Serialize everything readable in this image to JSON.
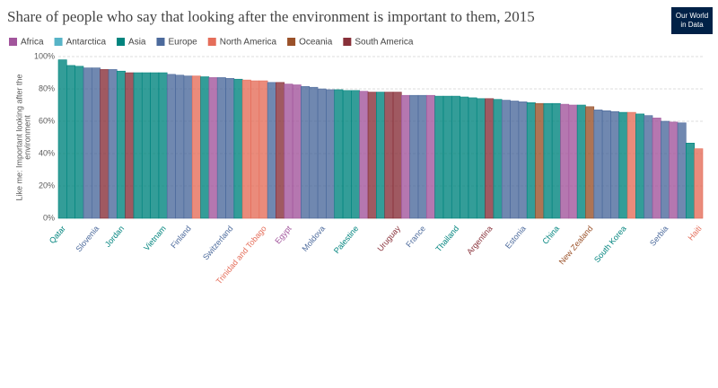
{
  "chart_data": {
    "type": "bar",
    "title": "Share of people who say that looking after the environment is important to them, 2015",
    "logo": [
      "Our World",
      "in Data"
    ],
    "y_label": [
      "Like me: Important looking after the",
      "environment"
    ],
    "legend": [
      {
        "name": "Africa",
        "color": "#a2559c"
      },
      {
        "name": "Antarctica",
        "color": "#57b4c7"
      },
      {
        "name": "Asia",
        "color": "#00847e"
      },
      {
        "name": "Europe",
        "color": "#4c6a9c"
      },
      {
        "name": "North America",
        "color": "#e56e5a"
      },
      {
        "name": "Oceania",
        "color": "#9a5129"
      },
      {
        "name": "South America",
        "color": "#883039"
      }
    ],
    "categories": [
      "Qatar",
      null,
      null,
      null,
      "Slovenia",
      null,
      null,
      "Jordan",
      null,
      null,
      null,
      null,
      "Vietnam",
      null,
      null,
      "Finland",
      null,
      null,
      null,
      null,
      "Switzerland",
      null,
      null,
      null,
      "Trinidad and Tobago",
      null,
      null,
      "Egypt",
      null,
      null,
      null,
      "Moldova",
      null,
      null,
      null,
      "Palestine",
      null,
      null,
      null,
      null,
      "Uruguay",
      null,
      null,
      "France",
      null,
      null,
      null,
      "Thailand",
      null,
      null,
      null,
      "Argentina",
      null,
      null,
      null,
      "Estonia",
      null,
      null,
      null,
      "China",
      null,
      null,
      null,
      "New Zealand",
      null,
      null,
      null,
      "South Korea",
      null,
      null,
      null,
      null,
      "Serbia",
      null,
      null,
      null,
      "Haiti"
    ],
    "values": [
      98,
      94.5,
      94,
      93,
      93,
      92,
      92,
      91,
      90,
      90,
      90,
      90,
      90,
      89,
      88.5,
      88,
      88,
      87.5,
      87,
      87,
      86.5,
      86,
      85.5,
      85,
      85,
      84,
      84,
      83,
      82.5,
      81.5,
      81,
      80,
      79.5,
      79.5,
      79,
      79,
      78.5,
      78,
      78,
      78,
      78,
      76,
      76,
      76,
      76,
      75.5,
      75.5,
      75.5,
      75,
      74.5,
      74,
      74,
      73.5,
      73,
      72.5,
      72,
      71.5,
      71,
      71,
      71,
      70.5,
      70,
      70,
      69,
      67,
      66.5,
      66,
      65.5,
      65.5,
      64.5,
      63.5,
      62,
      60,
      59.5,
      59,
      46.5,
      43
    ],
    "colors": [
      "#00847e",
      "#00847e",
      "#00847e",
      "#4c6a9c",
      "#4c6a9c",
      "#883039",
      "#4c6a9c",
      "#00847e",
      "#883039",
      "#00847e",
      "#00847e",
      "#00847e",
      "#00847e",
      "#4c6a9c",
      "#4c6a9c",
      "#4c6a9c",
      "#e56e5a",
      "#00847e",
      "#a2559c",
      "#4c6a9c",
      "#4c6a9c",
      "#00847e",
      "#e56e5a",
      "#e56e5a",
      "#e56e5a",
      "#4c6a9c",
      "#883039",
      "#a2559c",
      "#a2559c",
      "#4c6a9c",
      "#4c6a9c",
      "#4c6a9c",
      "#4c6a9c",
      "#00847e",
      "#00847e",
      "#00847e",
      "#a2559c",
      "#883039",
      "#00847e",
      "#883039",
      "#883039",
      "#a2559c",
      "#4c6a9c",
      "#4c6a9c",
      "#a2559c",
      "#00847e",
      "#00847e",
      "#00847e",
      "#00847e",
      "#00847e",
      "#00847e",
      "#883039",
      "#00847e",
      "#4c6a9c",
      "#4c6a9c",
      "#4c6a9c",
      "#00847e",
      "#9a5129",
      "#00847e",
      "#00847e",
      "#a2559c",
      "#a2559c",
      "#00847e",
      "#9a5129",
      "#4c6a9c",
      "#4c6a9c",
      "#4c6a9c",
      "#00847e",
      "#e56e5a",
      "#00847e",
      "#4c6a9c",
      "#a2559c",
      "#4c6a9c",
      "#a2559c",
      "#4c6a9c",
      "#00847e",
      "#e56e5a"
    ],
    "ylim": [
      0,
      100
    ],
    "yticks": [
      {
        "value": 0,
        "label": "0%"
      },
      {
        "value": 20,
        "label": "20%"
      },
      {
        "value": 40,
        "label": "40%"
      },
      {
        "value": 60,
        "label": "60%"
      },
      {
        "value": 80,
        "label": "80%"
      },
      {
        "value": 100,
        "label": "100%"
      }
    ],
    "grid": true
  }
}
